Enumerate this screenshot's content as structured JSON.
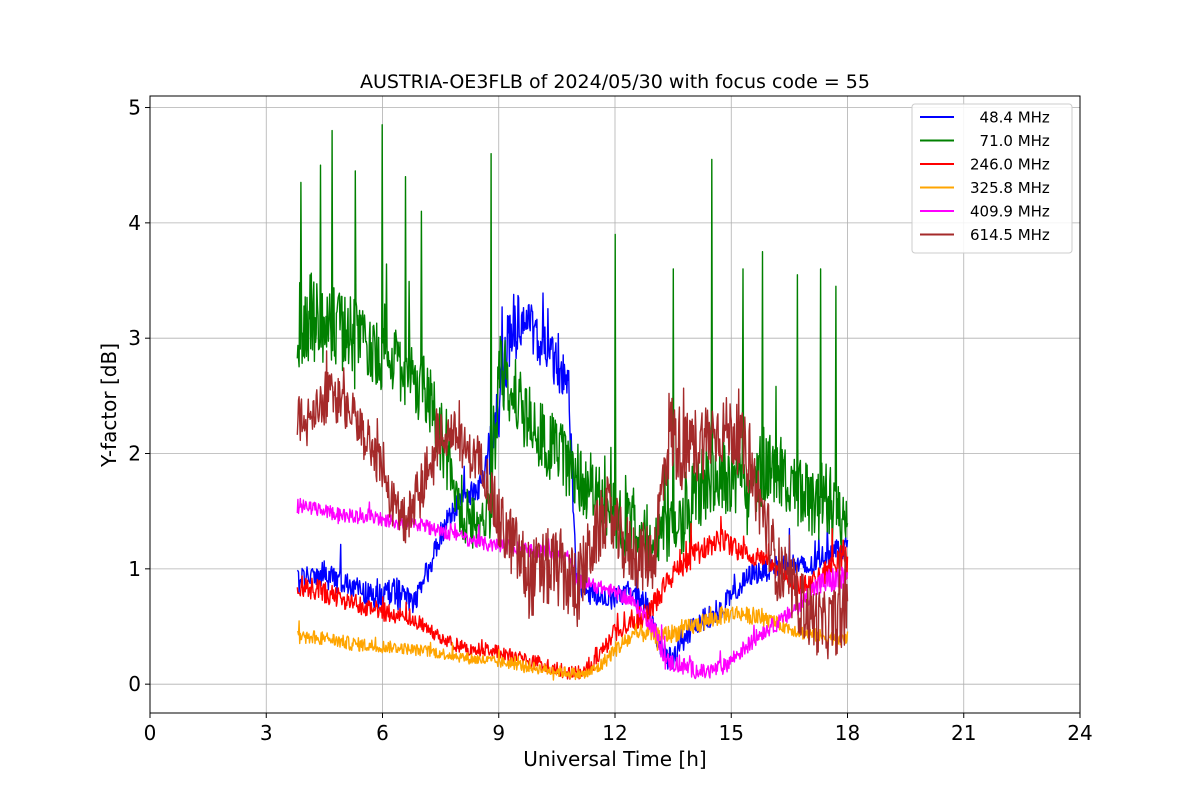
{
  "chart_data": {
    "type": "line",
    "title": "AUSTRIA-OE3FLB of 2024/05/30 with focus code = 55",
    "xlabel": "Universal Time [h]",
    "ylabel": "Y-factor [dB]",
    "xlim": [
      0,
      24
    ],
    "ylim": [
      -0.25,
      5.1
    ],
    "xticks": [
      0,
      3,
      6,
      9,
      12,
      15,
      18,
      21,
      24
    ],
    "yticks": [
      0,
      1,
      2,
      3,
      4,
      5
    ],
    "grid": true,
    "legend_position": "top-right",
    "series": [
      {
        "name": "  48.4 MHz",
        "color": "#0000ff",
        "x": [
          3.8,
          4.5,
          5.2,
          5.8,
          6.3,
          6.8,
          7.2,
          7.5,
          8.0,
          8.5,
          9.0,
          9.3,
          9.6,
          10.0,
          10.4,
          10.8,
          11.0,
          11.3,
          11.6,
          12.0,
          12.4,
          12.8,
          13.2,
          13.5,
          14.0,
          14.5,
          15.0,
          15.5,
          16.0,
          16.5,
          17.0,
          17.5,
          18.0
        ],
        "y": [
          0.9,
          0.95,
          0.85,
          0.75,
          0.8,
          0.7,
          1.0,
          1.3,
          1.6,
          1.7,
          2.3,
          3.1,
          3.2,
          3.0,
          2.8,
          2.6,
          0.9,
          0.8,
          0.75,
          0.75,
          0.8,
          0.7,
          0.3,
          0.2,
          0.5,
          0.6,
          0.75,
          0.95,
          1.0,
          1.05,
          1.0,
          1.15,
          1.2
        ],
        "amp": [
          0.12,
          0.12,
          0.1,
          0.1,
          0.15,
          0.1,
          0.1,
          0.1,
          0.1,
          0.1,
          0.3,
          0.3,
          0.25,
          0.2,
          0.2,
          0.2,
          0.1,
          0.1,
          0.1,
          0.1,
          0.1,
          0.1,
          0.1,
          0.1,
          0.1,
          0.1,
          0.1,
          0.1,
          0.1,
          0.1,
          0.1,
          0.1,
          0.1
        ]
      },
      {
        "name": "  71.0 MHz",
        "color": "#008000",
        "x": [
          3.8,
          4.3,
          4.8,
          5.3,
          5.8,
          6.3,
          6.8,
          7.2,
          7.6,
          8.0,
          8.4,
          8.8,
          9.0,
          9.4,
          9.8,
          10.2,
          10.6,
          11.0,
          11.4,
          11.8,
          12.2,
          12.6,
          13.0,
          13.4,
          13.8,
          14.2,
          14.6,
          15.0,
          15.4,
          15.8,
          16.2,
          16.6,
          17.0,
          17.4,
          18.0
        ],
        "y": [
          3.1,
          3.2,
          3.1,
          3.0,
          2.9,
          2.8,
          2.6,
          2.5,
          2.0,
          1.5,
          1.4,
          1.5,
          2.7,
          2.5,
          2.3,
          2.1,
          2.0,
          1.8,
          1.7,
          1.5,
          1.4,
          1.4,
          1.2,
          1.3,
          1.5,
          1.7,
          1.8,
          1.8,
          1.7,
          1.9,
          1.8,
          1.7,
          1.6,
          1.5,
          1.4
        ],
        "amp": [
          0.4,
          0.4,
          0.35,
          0.35,
          0.3,
          0.3,
          0.3,
          0.3,
          0.3,
          0.25,
          0.25,
          0.25,
          0.4,
          0.35,
          0.3,
          0.3,
          0.3,
          0.3,
          0.3,
          0.3,
          0.3,
          0.3,
          0.3,
          0.3,
          0.35,
          0.35,
          0.35,
          0.35,
          0.3,
          0.35,
          0.3,
          0.3,
          0.3,
          0.3,
          0.3
        ],
        "spikes": [
          [
            3.9,
            4.35
          ],
          [
            4.4,
            4.5
          ],
          [
            4.7,
            4.8
          ],
          [
            5.3,
            4.45
          ],
          [
            6.0,
            4.85
          ],
          [
            6.6,
            4.4
          ],
          [
            7.0,
            4.1
          ],
          [
            8.8,
            4.6
          ],
          [
            12.0,
            3.9
          ],
          [
            13.5,
            3.6
          ],
          [
            14.5,
            4.55
          ],
          [
            15.3,
            3.6
          ],
          [
            15.8,
            3.75
          ],
          [
            16.7,
            3.55
          ],
          [
            17.3,
            3.6
          ],
          [
            17.7,
            3.45
          ]
        ]
      },
      {
        "name": "246.0 MHz",
        "color": "#ff0000",
        "x": [
          3.8,
          4.5,
          5.2,
          5.8,
          6.3,
          6.8,
          7.3,
          7.8,
          8.3,
          8.8,
          9.3,
          9.8,
          10.3,
          10.8,
          11.2,
          11.6,
          12.0,
          12.4,
          12.8,
          13.2,
          13.6,
          14.0,
          14.4,
          14.8,
          15.2,
          15.6,
          16.0,
          16.4,
          16.8,
          17.2,
          17.6,
          18.0
        ],
        "y": [
          0.85,
          0.8,
          0.7,
          0.65,
          0.6,
          0.55,
          0.45,
          0.35,
          0.3,
          0.3,
          0.25,
          0.2,
          0.15,
          0.1,
          0.1,
          0.25,
          0.45,
          0.55,
          0.6,
          0.8,
          1.0,
          1.1,
          1.2,
          1.25,
          1.15,
          1.1,
          1.05,
          0.95,
          0.85,
          0.9,
          1.0,
          1.1
        ],
        "amp": [
          0.1,
          0.1,
          0.08,
          0.08,
          0.08,
          0.08,
          0.06,
          0.06,
          0.06,
          0.06,
          0.06,
          0.06,
          0.06,
          0.06,
          0.06,
          0.08,
          0.08,
          0.1,
          0.1,
          0.1,
          0.1,
          0.1,
          0.1,
          0.1,
          0.08,
          0.08,
          0.08,
          0.08,
          0.08,
          0.1,
          0.15,
          0.2
        ]
      },
      {
        "name": "325.8 MHz",
        "color": "#ffa500",
        "x": [
          3.8,
          4.5,
          5.2,
          5.8,
          6.3,
          6.8,
          7.3,
          7.8,
          8.3,
          8.8,
          9.3,
          9.8,
          10.3,
          10.8,
          11.2,
          11.6,
          12.0,
          12.4,
          12.8,
          13.2,
          13.6,
          14.0,
          14.4,
          14.8,
          15.2,
          15.6,
          16.0,
          16.4,
          16.8,
          17.2,
          17.6,
          18.0
        ],
        "y": [
          0.42,
          0.4,
          0.35,
          0.33,
          0.32,
          0.3,
          0.28,
          0.25,
          0.22,
          0.2,
          0.18,
          0.15,
          0.12,
          0.1,
          0.08,
          0.15,
          0.3,
          0.4,
          0.45,
          0.42,
          0.45,
          0.5,
          0.55,
          0.6,
          0.62,
          0.58,
          0.55,
          0.5,
          0.45,
          0.42,
          0.4,
          0.4
        ],
        "amp": [
          0.07,
          0.06,
          0.06,
          0.06,
          0.05,
          0.05,
          0.05,
          0.05,
          0.05,
          0.05,
          0.05,
          0.05,
          0.05,
          0.05,
          0.05,
          0.06,
          0.07,
          0.08,
          0.08,
          0.08,
          0.08,
          0.08,
          0.08,
          0.08,
          0.07,
          0.07,
          0.06,
          0.06,
          0.06,
          0.06,
          0.06,
          0.06
        ]
      },
      {
        "name": "409.9 MHz",
        "color": "#ff00ff",
        "x": [
          3.8,
          4.5,
          5.2,
          5.8,
          6.3,
          6.8,
          7.3,
          7.8,
          8.3,
          8.8,
          9.3,
          9.8,
          10.3,
          10.8,
          11.0,
          11.5,
          12.0,
          12.5,
          13.0,
          13.3,
          13.8,
          14.3,
          14.8,
          15.3,
          15.8,
          16.3,
          16.8,
          17.2,
          17.6,
          18.0
        ],
        "y": [
          1.55,
          1.5,
          1.45,
          1.45,
          1.4,
          1.4,
          1.35,
          1.3,
          1.25,
          1.2,
          1.2,
          1.15,
          1.15,
          1.1,
          0.9,
          0.85,
          0.8,
          0.7,
          0.5,
          0.2,
          0.15,
          0.1,
          0.15,
          0.3,
          0.45,
          0.55,
          0.7,
          0.85,
          0.9,
          0.9
        ],
        "amp": [
          0.07,
          0.06,
          0.06,
          0.06,
          0.06,
          0.06,
          0.06,
          0.06,
          0.06,
          0.06,
          0.06,
          0.06,
          0.06,
          0.06,
          0.06,
          0.06,
          0.06,
          0.06,
          0.08,
          0.08,
          0.08,
          0.07,
          0.07,
          0.07,
          0.07,
          0.07,
          0.08,
          0.1,
          0.12,
          0.12
        ]
      },
      {
        "name": "614.5 MHz",
        "color": "#a52a2a",
        "x": [
          3.8,
          4.2,
          4.6,
          5.0,
          5.4,
          5.8,
          6.2,
          6.6,
          7.0,
          7.4,
          7.8,
          8.2,
          8.6,
          9.0,
          9.4,
          9.8,
          10.2,
          10.6,
          11.0,
          11.4,
          11.8,
          12.2,
          12.6,
          13.0,
          13.4,
          13.8,
          14.2,
          14.6,
          15.0,
          15.4,
          15.8,
          16.2,
          16.6,
          17.0,
          17.4,
          18.0
        ],
        "y": [
          2.25,
          2.3,
          2.5,
          2.4,
          2.3,
          2.0,
          1.6,
          1.4,
          1.7,
          2.1,
          2.2,
          2.0,
          1.9,
          1.4,
          1.2,
          0.9,
          1.0,
          1.0,
          0.8,
          1.2,
          1.5,
          1.2,
          1.1,
          1.1,
          2.2,
          2.0,
          2.1,
          2.2,
          2.2,
          2.0,
          1.5,
          1.0,
          0.8,
          0.6,
          0.5,
          0.6
        ],
        "amp": [
          0.25,
          0.25,
          0.25,
          0.2,
          0.2,
          0.2,
          0.2,
          0.2,
          0.25,
          0.25,
          0.2,
          0.2,
          0.2,
          0.3,
          0.3,
          0.35,
          0.35,
          0.35,
          0.35,
          0.3,
          0.3,
          0.3,
          0.3,
          0.3,
          0.4,
          0.35,
          0.35,
          0.3,
          0.3,
          0.3,
          0.3,
          0.3,
          0.3,
          0.3,
          0.3,
          0.3
        ]
      }
    ]
  }
}
